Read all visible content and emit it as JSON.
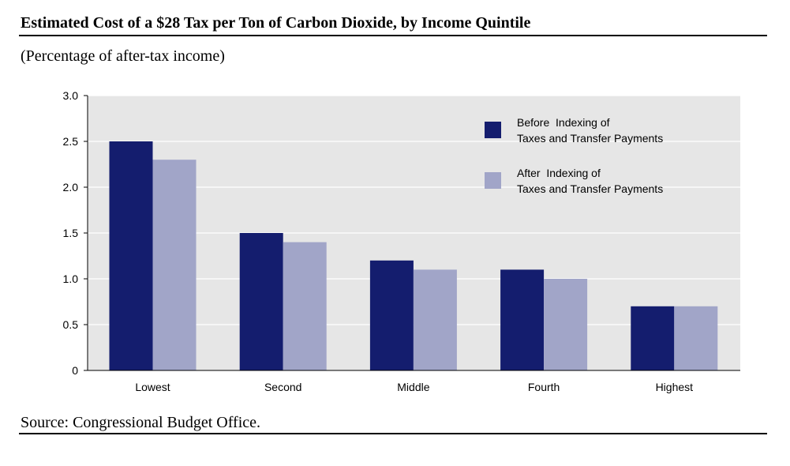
{
  "title": "Estimated Cost of a $28 Tax per Ton of Carbon Dioxide, by Income Quintile",
  "subtitle": "(Percentage of after-tax income)",
  "source": "Source: Congressional Budget Office.",
  "colors": {
    "series_before": "#141d6e",
    "series_after": "#a1a5c8",
    "plot_background": "#e6e6e6",
    "gridline": "#ffffff"
  },
  "chart_data": {
    "type": "bar",
    "categories": [
      "Lowest",
      "Second",
      "Middle",
      "Fourth",
      "Highest"
    ],
    "series": [
      {
        "name": "Before Indexing of Taxes and Transfer Payments",
        "legend_lines": [
          "Before  Indexing of",
          "Taxes and Transfer Payments"
        ],
        "values": [
          2.5,
          1.5,
          1.2,
          1.1,
          0.7
        ]
      },
      {
        "name": "After Indexing of Taxes and Transfer Payments",
        "legend_lines": [
          "After  Indexing of",
          "Taxes and Transfer Payments"
        ],
        "values": [
          2.3,
          1.4,
          1.1,
          1.0,
          0.7
        ]
      }
    ],
    "yticks": [
      "0",
      "0.5",
      "1.0",
      "1.5",
      "2.0",
      "2.5",
      "3.0"
    ],
    "ylim": [
      0,
      3
    ],
    "grid": true,
    "legend_position": "top-right",
    "title": "Estimated Cost of a $28 Tax per Ton of Carbon Dioxide, by Income Quintile",
    "xlabel": "",
    "ylabel": "(Percentage of after-tax income)"
  }
}
